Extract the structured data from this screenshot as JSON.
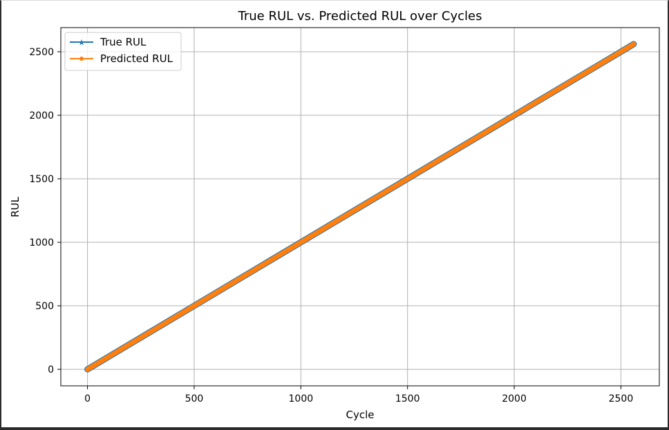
{
  "chart_data": {
    "type": "line",
    "title": "True RUL vs. Predicted RUL over Cycles",
    "xlabel": "Cycle",
    "ylabel": "RUL",
    "xlim": [
      -125,
      2680
    ],
    "ylim": [
      -130,
      2690
    ],
    "xticks": [
      0,
      500,
      1000,
      1500,
      2000,
      2500
    ],
    "yticks": [
      0,
      500,
      1000,
      1500,
      2000,
      2500
    ],
    "grid": true,
    "legend_position": "top-left",
    "series": [
      {
        "name": "True RUL",
        "color": "#1f77b4",
        "marker": "star",
        "x": [
          0,
          2560
        ],
        "y": [
          0,
          2560
        ]
      },
      {
        "name": "Predicted RUL",
        "color": "#ff7f0e",
        "marker": "circle",
        "x": [
          0,
          2560
        ],
        "y": [
          0,
          2560
        ]
      }
    ]
  }
}
